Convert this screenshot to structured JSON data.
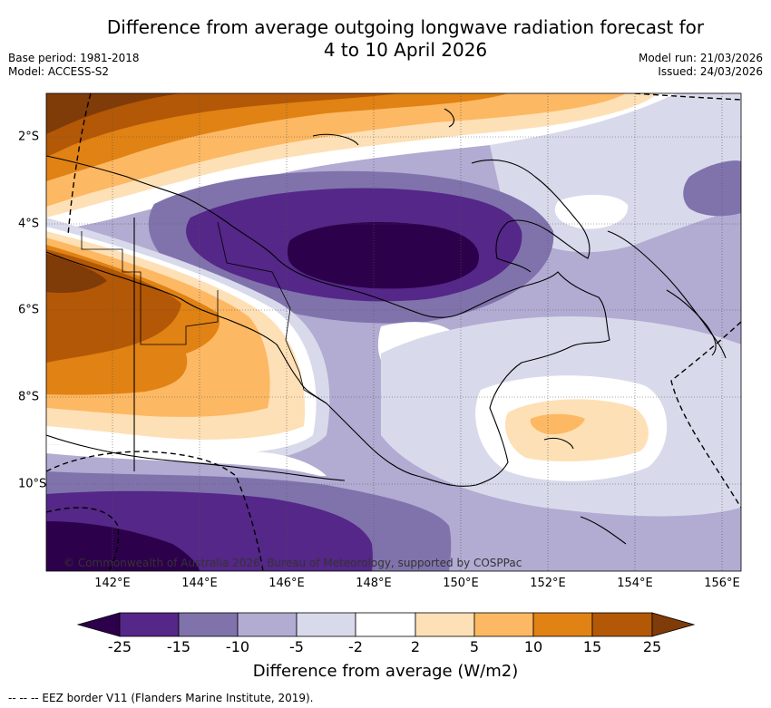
{
  "title": {
    "line1": "Difference from average outgoing longwave radiation forecast for",
    "line2": "4 to 10 April 2026"
  },
  "meta": {
    "base_period": "Base period: 1981-2018",
    "model": "Model: ACCESS-S2",
    "model_run": "Model run: 21/03/2026",
    "issued": "Issued: 24/03/2026"
  },
  "axes": {
    "longitudes": [
      "142°E",
      "144°E",
      "146°E",
      "148°E",
      "150°E",
      "152°E",
      "154°E",
      "156°E"
    ],
    "latitudes": [
      "2°S",
      "4°S",
      "6°S",
      "8°S",
      "10°S"
    ]
  },
  "copyright": "© Commonwealth of Australia 2026, Bureau of Meteorology, supported by COSPPac",
  "colorbar": {
    "title": "Difference from average (W/m2)",
    "ticks": [
      "-25",
      "-15",
      "-10",
      "-5",
      "-2",
      "2",
      "5",
      "10",
      "15",
      "25"
    ],
    "colors": [
      "#2d004b",
      "#542788",
      "#8073ac",
      "#b2abd2",
      "#d8daeb",
      "#ffffff",
      "#fee0b6",
      "#fdb863",
      "#e08214",
      "#b35806",
      "#7f3b08"
    ]
  },
  "footnote": "-- -- -- EEZ border V11 (Flanders Marine Institute, 2019).",
  "icons": {
    "dashed-line": "eez-border-icon"
  }
}
